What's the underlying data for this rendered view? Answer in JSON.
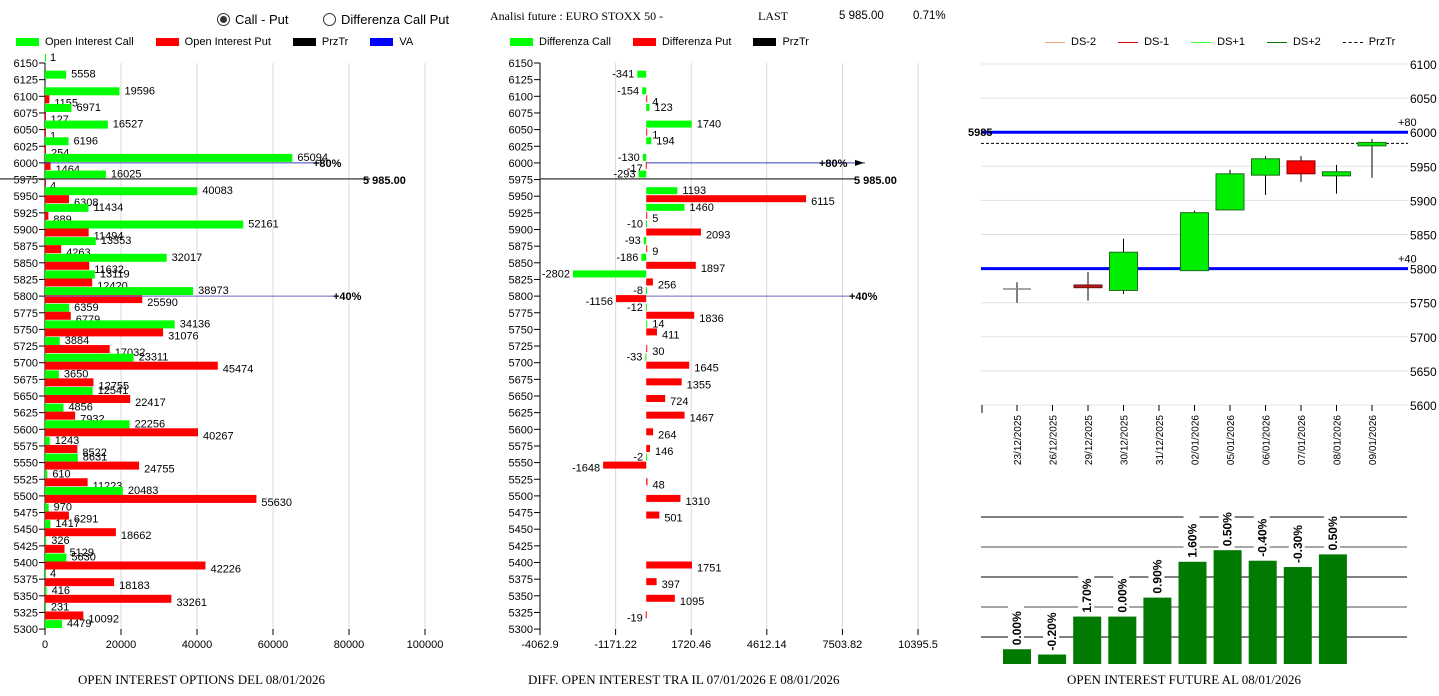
{
  "header": {
    "radio_options": [
      {
        "label": "Call - Put",
        "selected": true
      },
      {
        "label": "Differenza Call Put",
        "selected": false
      }
    ],
    "analysis_label": "Analisi future : EURO STOXX 50 -",
    "last_label": "LAST",
    "last_value": "5 985.00",
    "last_change": "0.71%"
  },
  "colors": {
    "call": "#00ff00",
    "put": "#ff0000",
    "prztr": "#000000",
    "va": "#0000ff",
    "ds_minus2": "#f4a07a",
    "ds_minus1": "#e00000",
    "ds_plus1": "#33ff33",
    "ds_plus2": "#007a00",
    "oi_future_bar": "#007a00"
  },
  "chart_data": [
    {
      "type": "bar",
      "orientation": "horizontal",
      "title": "OPEN INTEREST OPTIONS DEL 08/01/2026",
      "legend": [
        "Open Interest Call",
        "Open Interest Put",
        "PrzTr",
        "VA"
      ],
      "legend_position": "top",
      "xlim": [
        0,
        100000
      ],
      "xticks": [
        "0",
        "20000",
        "40000",
        "60000",
        "80000",
        "100000"
      ],
      "categories": [
        "6150",
        "6125",
        "6100",
        "6075",
        "6050",
        "6025",
        "6000",
        "5975",
        "5950",
        "5925",
        "5900",
        "5875",
        "5850",
        "5825",
        "5800",
        "5775",
        "5750",
        "5725",
        "5700",
        "5675",
        "5650",
        "5625",
        "5600",
        "5575",
        "5550",
        "5525",
        "5500",
        "5475",
        "5450",
        "5425",
        "5400",
        "5375",
        "5350",
        "5325",
        "5300"
      ],
      "series": [
        {
          "name": "Open Interest Call",
          "values": [
            1,
            5558,
            19596,
            6971,
            16527,
            6196,
            65094,
            16025,
            40083,
            11434,
            52161,
            13353,
            32017,
            13119,
            38973,
            6359,
            34136,
            3884,
            23311,
            3650,
            12541,
            4856,
            22256,
            1243,
            8631,
            610,
            20483,
            970,
            1417,
            326,
            5630,
            4,
            416,
            231,
            4479
          ]
        },
        {
          "name": "Open Interest Put",
          "values": [
            null,
            null,
            1155,
            127,
            1,
            254,
            1464,
            4,
            6308,
            889,
            11494,
            4263,
            11632,
            12420,
            25590,
            6779,
            31076,
            17032,
            45474,
            12755,
            22417,
            7932,
            40267,
            8522,
            24755,
            11223,
            55630,
            6291,
            18662,
            5129,
            42226,
            18183,
            33261,
            10092,
            null
          ]
        }
      ],
      "annotations": [
        {
          "type": "prztr_line",
          "strike": 5985,
          "label": "5 985.00"
        },
        {
          "type": "va_line",
          "strike": 6000,
          "label": "+80%"
        },
        {
          "type": "va_line",
          "strike": 5800,
          "label": "+40%"
        }
      ]
    },
    {
      "type": "bar",
      "orientation": "horizontal",
      "title": "DIFF. OPEN INTEREST TRA IL 07/01/2026 E 08/01/2026",
      "legend": [
        "Differenza Call",
        "Differenza Put",
        "PrzTr"
      ],
      "legend_position": "top",
      "xlim": [
        -4062.9,
        10395.5
      ],
      "xticks": [
        "-4062.9",
        "-1171.22",
        "1720.46",
        "4612.14",
        "7503.82",
        "10395.5"
      ],
      "categories": [
        "6150",
        "6125",
        "6100",
        "6075",
        "6050",
        "6025",
        "6000",
        "5975",
        "5950",
        "5925",
        "5900",
        "5875",
        "5850",
        "5825",
        "5800",
        "5775",
        "5750",
        "5725",
        "5700",
        "5675",
        "5650",
        "5625",
        "5600",
        "5575",
        "5550",
        "5525",
        "5500",
        "5475",
        "5450",
        "5425",
        "5400",
        "5375",
        "5350",
        "5325",
        "5300"
      ],
      "series": [
        {
          "name": "Differenza Call",
          "values": [
            null,
            -341,
            -154,
            123,
            1740,
            194,
            -130,
            -293,
            1193,
            1460,
            -10,
            -93,
            -186,
            -2802,
            -8,
            -12,
            14,
            null,
            -33,
            null,
            null,
            null,
            null,
            null,
            -2,
            null,
            null,
            null,
            null,
            null,
            null,
            null,
            null,
            null,
            null
          ]
        },
        {
          "name": "Differenza Put",
          "values": [
            null,
            null,
            4,
            null,
            1,
            null,
            -17,
            null,
            6115,
            5,
            2093,
            9,
            1897,
            256,
            -1156,
            1836,
            411,
            30,
            1645,
            1355,
            724,
            1467,
            264,
            146,
            -1648,
            48,
            1310,
            501,
            null,
            null,
            1751,
            397,
            1095,
            -19,
            null
          ]
        }
      ],
      "annotations": [
        {
          "type": "prztr_line",
          "strike": 5985,
          "label": "5 985.00"
        },
        {
          "type": "va_line",
          "strike": 6000,
          "label": "+80%"
        },
        {
          "type": "va_line",
          "strike": 5800,
          "label": "+40%"
        }
      ]
    },
    {
      "type": "candlestick",
      "title": "",
      "legend": [
        "DS-2",
        "DS-1",
        "DS+1",
        "DS+2",
        "PrzTr"
      ],
      "legend_position": "top",
      "ylim": [
        5600,
        6100
      ],
      "yticks": [
        "6100",
        "6050",
        "6000",
        "5950",
        "5900",
        "5850",
        "5800",
        "5750",
        "5700",
        "5650",
        "5600"
      ],
      "x": [
        "23/12/2025",
        "26/12/2025",
        "29/12/2025",
        "30/12/2025",
        "31/12/2025",
        "02/01/2026",
        "05/01/2026",
        "06/01/2026",
        "07/01/2026",
        "08/01/2026",
        "09/01/2026"
      ],
      "candles": [
        {
          "open": 5770,
          "close": 5770,
          "high": 5780,
          "low": 5750,
          "color": "doji"
        },
        null,
        {
          "open": 5776,
          "close": 5772,
          "high": 5795,
          "low": 5753,
          "color": "down-dark"
        },
        {
          "open": 5768,
          "close": 5824,
          "high": 5844,
          "low": 5763,
          "color": "up"
        },
        null,
        {
          "open": 5797,
          "close": 5882,
          "high": 5885,
          "low": 5797,
          "color": "up"
        },
        {
          "open": 5886,
          "close": 5939,
          "high": 5945,
          "low": 5886,
          "color": "up"
        },
        {
          "open": 5937,
          "close": 5961,
          "high": 5965,
          "low": 5908,
          "color": "up"
        },
        {
          "open": 5958,
          "close": 5939,
          "high": 5965,
          "low": 5927,
          "color": "down"
        },
        {
          "open": 5936,
          "close": 5942,
          "high": 5952,
          "low": 5910,
          "color": "up"
        },
        {
          "open": 5980,
          "close": 5985,
          "high": 5990,
          "low": 5933,
          "color": "up"
        }
      ],
      "annotations": [
        {
          "type": "hline",
          "value": 6000,
          "label": "+80",
          "color": "#0000ff"
        },
        {
          "type": "hline",
          "value": 5800,
          "label": "+40",
          "color": "#0000ff"
        },
        {
          "type": "prztr",
          "value": 5985,
          "label": "5985"
        }
      ]
    },
    {
      "type": "bar",
      "title": "OPEN INTEREST FUTURE AL 08/01/2026",
      "categories": [
        "23/12/2025",
        "26/12/2025",
        "29/12/2025",
        "30/12/2025",
        "31/12/2025",
        "02/01/2026",
        "05/01/2026",
        "06/01/2026",
        "07/01/2026",
        "08/01/2026"
      ],
      "values": [
        0.14,
        0.09,
        0.45,
        0.45,
        0.63,
        0.97,
        1.08,
        0.98,
        0.92,
        1.04
      ],
      "value_units": "relative bar height (axis unlabeled, gridlines at 0.2 steps)",
      "data_labels": [
        "0.00%",
        "-0.20%",
        "1.70%",
        "0.00%",
        "0.90%",
        "1.60%",
        "0.50%",
        "-0.40%",
        "-0.30%",
        "0.50%"
      ],
      "ylim": [
        0,
        1.3
      ],
      "grid": true
    }
  ]
}
